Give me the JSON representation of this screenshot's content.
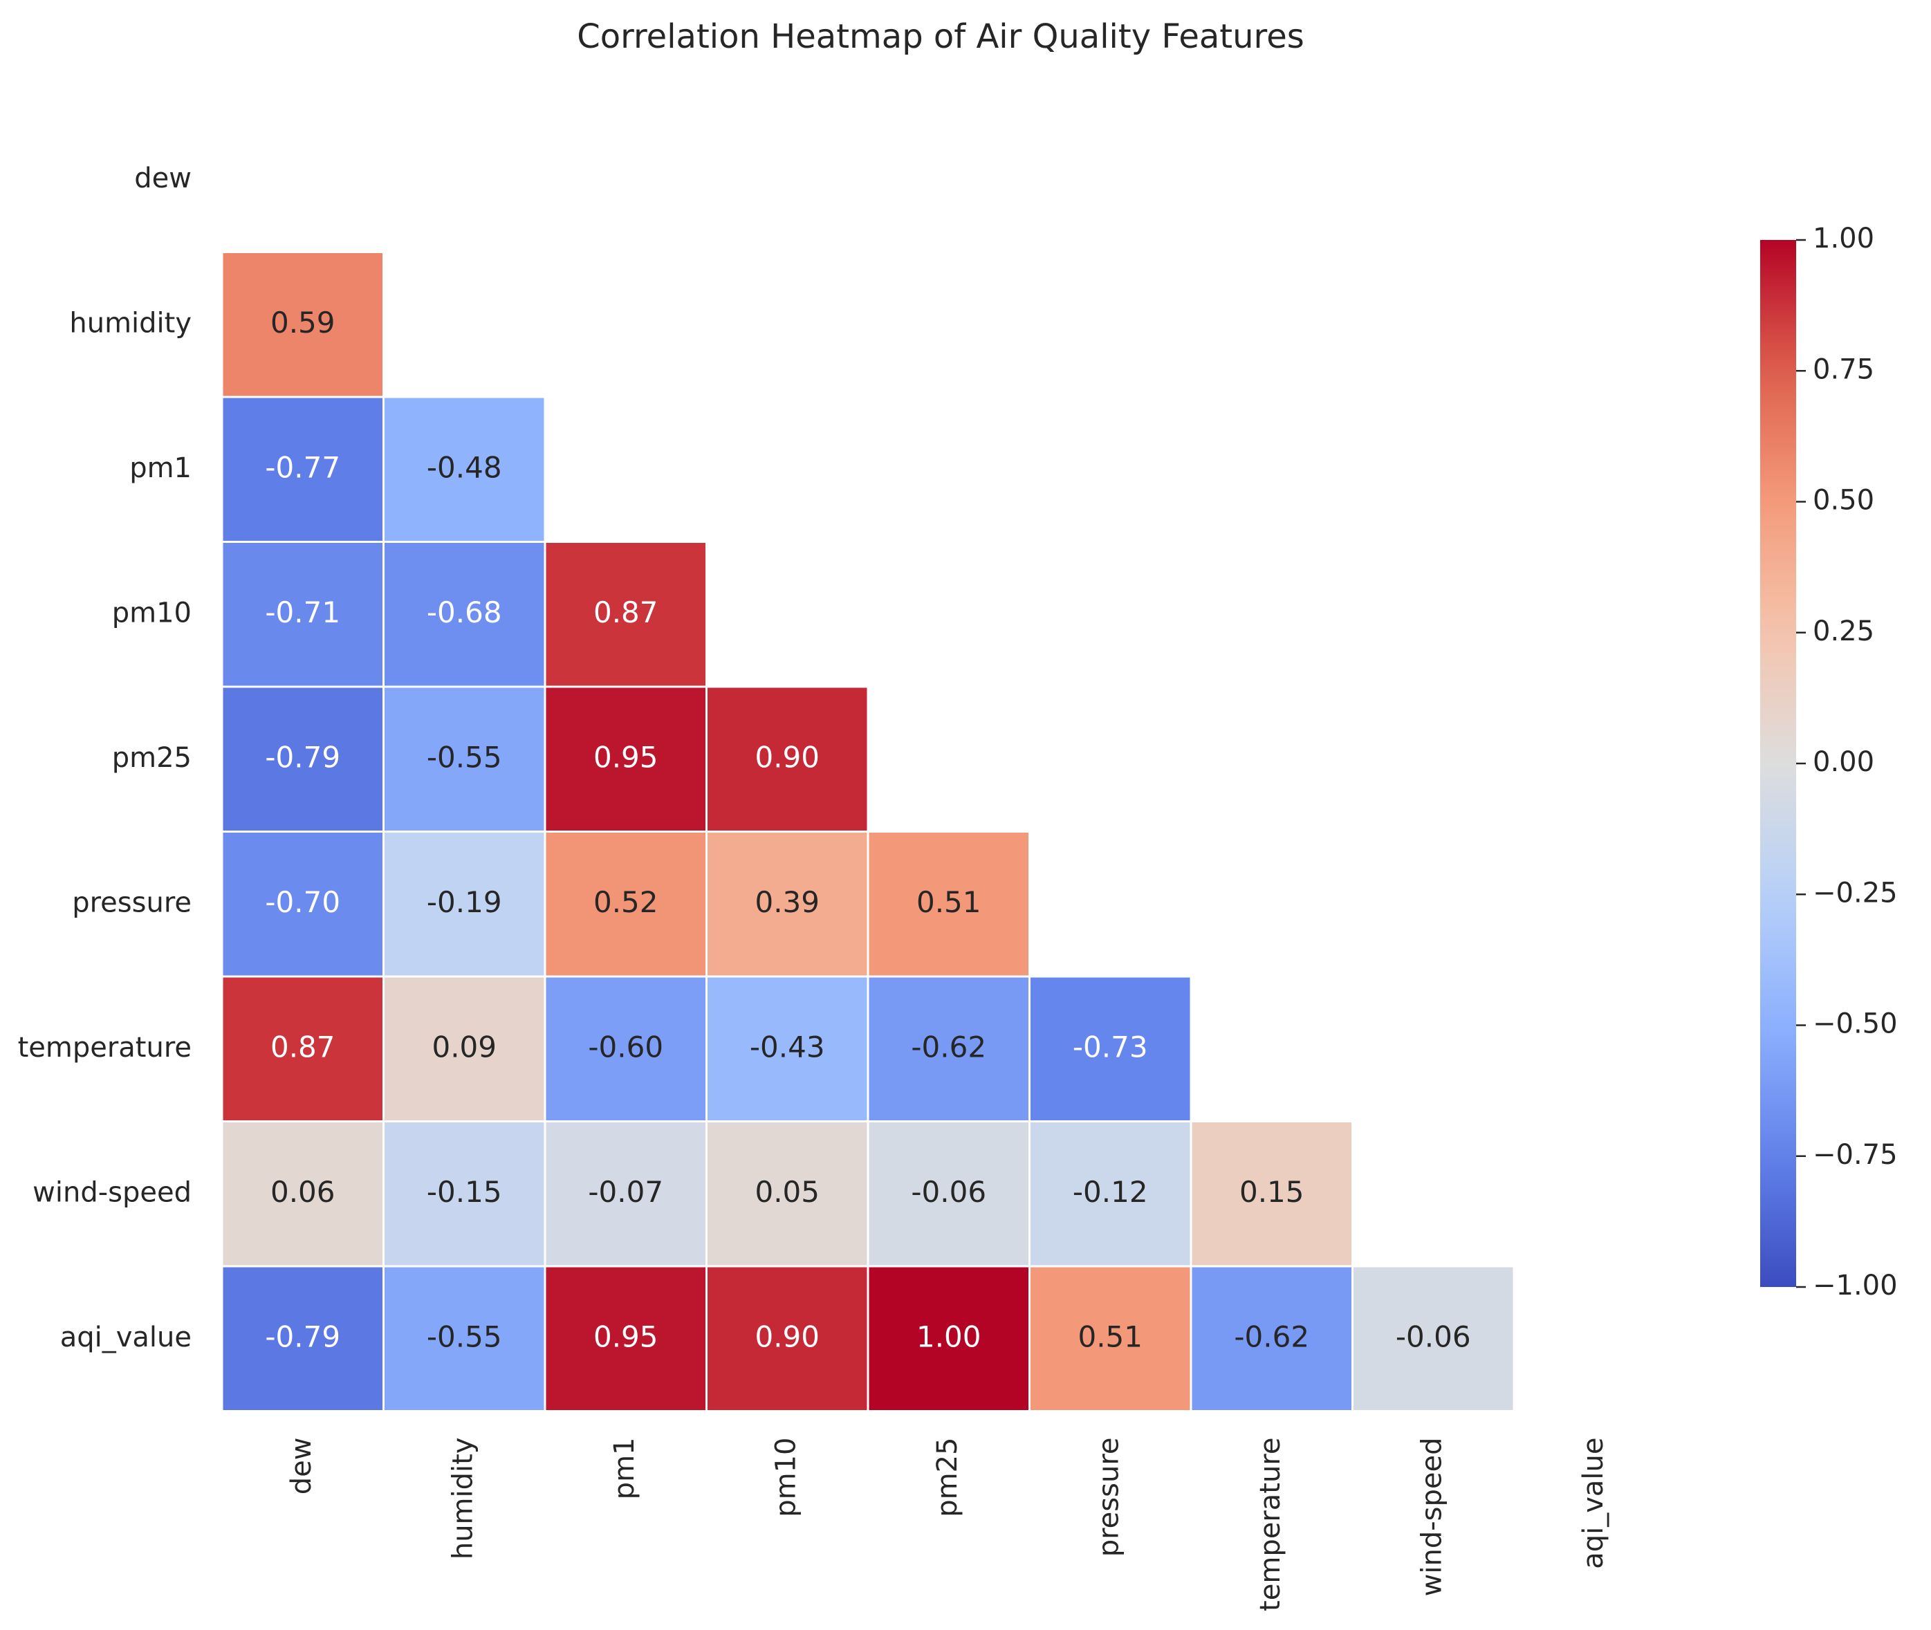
{
  "chart_data": {
    "type": "heatmap",
    "title": "Correlation Heatmap of Air Quality Features",
    "xlabel": "",
    "ylabel": "",
    "variables": [
      "dew",
      "humidity",
      "pm1",
      "pm10",
      "pm25",
      "pressure",
      "temperature",
      "wind-speed",
      "aqi_value"
    ],
    "mask": "upper-triangle-and-diagonal",
    "matrix": [
      [
        null,
        null,
        null,
        null,
        null,
        null,
        null,
        null,
        null
      ],
      [
        0.59,
        null,
        null,
        null,
        null,
        null,
        null,
        null,
        null
      ],
      [
        -0.77,
        -0.48,
        null,
        null,
        null,
        null,
        null,
        null,
        null
      ],
      [
        -0.71,
        -0.68,
        0.87,
        null,
        null,
        null,
        null,
        null,
        null
      ],
      [
        -0.79,
        -0.55,
        0.95,
        0.9,
        null,
        null,
        null,
        null,
        null
      ],
      [
        -0.7,
        -0.19,
        0.52,
        0.39,
        0.51,
        null,
        null,
        null,
        null
      ],
      [
        0.87,
        0.09,
        -0.6,
        -0.43,
        -0.62,
        -0.73,
        null,
        null,
        null
      ],
      [
        0.06,
        -0.15,
        -0.07,
        0.05,
        -0.06,
        -0.12,
        0.15,
        null,
        null
      ],
      [
        -0.79,
        -0.55,
        0.95,
        0.9,
        1.0,
        0.51,
        -0.62,
        -0.06,
        null
      ]
    ],
    "value_format": "2 decimals",
    "colormap": "coolwarm",
    "color_range": [
      -1.0,
      1.0
    ],
    "colorbar_ticks": [
      "1.00",
      "0.75",
      "0.50",
      "0.25",
      "0.00",
      "−0.25",
      "−0.50",
      "−0.75",
      "−1.00"
    ],
    "colorbar_tick_values": [
      1.0,
      0.75,
      0.5,
      0.25,
      0.0,
      -0.25,
      -0.5,
      -0.75,
      -1.0
    ],
    "grid": false,
    "cell_separator_color": "#ffffff",
    "legend_placement": "right"
  }
}
